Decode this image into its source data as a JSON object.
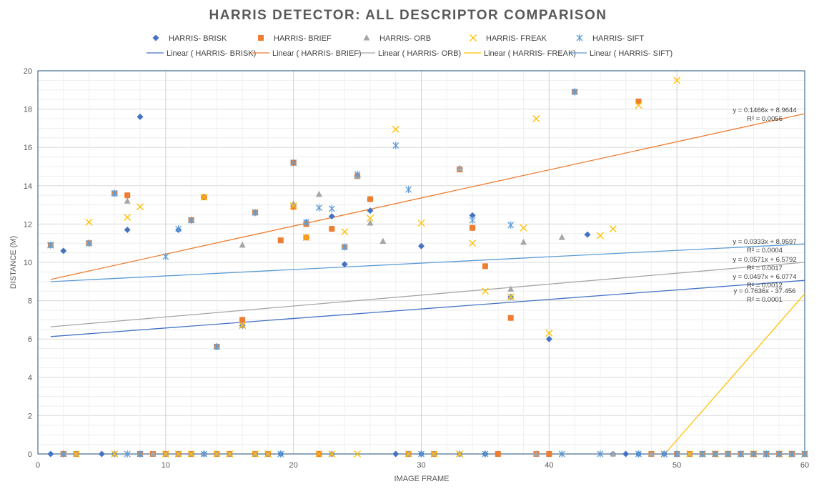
{
  "chart_data": {
    "type": "scatter",
    "title": "HARRIS DETECTOR: ALL DESCRIPTOR COMPARISON",
    "xlabel": "IMAGE FRAME",
    "ylabel": "DISTANCE (M)",
    "xlim": [
      0,
      60
    ],
    "ylim": [
      0,
      20
    ],
    "x_ticks": [
      0,
      10,
      20,
      30,
      40,
      50,
      60
    ],
    "y_ticks": [
      0,
      2,
      4,
      6,
      8,
      10,
      12,
      14,
      16,
      18,
      20
    ],
    "grid": true,
    "legend_position": "top",
    "series": [
      {
        "name": "HARRIS- BRISK",
        "marker": "diamond",
        "color": "#4472C4",
        "points": [
          [
            1,
            0
          ],
          [
            2,
            10.6
          ],
          [
            2,
            0
          ],
          [
            3,
            0
          ],
          [
            4,
            11
          ],
          [
            5,
            0
          ],
          [
            6,
            13.6
          ],
          [
            6,
            0
          ],
          [
            7,
            11.7
          ],
          [
            8,
            17.6
          ],
          [
            8,
            0
          ],
          [
            9,
            0
          ],
          [
            10,
            0
          ],
          [
            11,
            11.7
          ],
          [
            11,
            0
          ],
          [
            12,
            12.2
          ],
          [
            12,
            0
          ],
          [
            13,
            13.4
          ],
          [
            13,
            0
          ],
          [
            14,
            5.6
          ],
          [
            14,
            0
          ],
          [
            15,
            0
          ],
          [
            16,
            6.7
          ],
          [
            17,
            12.6
          ],
          [
            17,
            0
          ],
          [
            18,
            0
          ],
          [
            19,
            0
          ],
          [
            20,
            15.2
          ],
          [
            21,
            12.1
          ],
          [
            21,
            11.3
          ],
          [
            22,
            0
          ],
          [
            23,
            12.4
          ],
          [
            23,
            0
          ],
          [
            24,
            10.8
          ],
          [
            24,
            9.9
          ],
          [
            25,
            14.5
          ],
          [
            26,
            12.7
          ],
          [
            26,
            13.3
          ],
          [
            28,
            0
          ],
          [
            29,
            0
          ],
          [
            30,
            10.85
          ],
          [
            30,
            0
          ],
          [
            31,
            0
          ],
          [
            33,
            14.9
          ],
          [
            33,
            0
          ],
          [
            34,
            12.45
          ],
          [
            34,
            11.8
          ],
          [
            35,
            0
          ],
          [
            36,
            0
          ],
          [
            37,
            8.2
          ],
          [
            39,
            0
          ],
          [
            40,
            6.0
          ],
          [
            42,
            18.9
          ],
          [
            43,
            11.45
          ],
          [
            45,
            0
          ],
          [
            46,
            0
          ],
          [
            47,
            0
          ],
          [
            48,
            0
          ],
          [
            49,
            0
          ],
          [
            50,
            0
          ],
          [
            51,
            0
          ],
          [
            52,
            0
          ],
          [
            53,
            0
          ],
          [
            54,
            0
          ],
          [
            55,
            0
          ],
          [
            56,
            0
          ],
          [
            57,
            0
          ],
          [
            58,
            0
          ],
          [
            59,
            0
          ],
          [
            60,
            0
          ]
        ],
        "trendline": {
          "name": "Linear ( HARRIS- BRISK)",
          "slope": 0.0497,
          "intercept": 6.0774,
          "x_range": [
            1,
            60
          ],
          "equation": "y = 0.0497x + 6.0774",
          "r2": "R² = 0.0012"
        }
      },
      {
        "name": "HARRIS- BRIEF",
        "marker": "square",
        "color": "#ED7D31",
        "points": [
          [
            1,
            10.9
          ],
          [
            2,
            0
          ],
          [
            3,
            0
          ],
          [
            4,
            11
          ],
          [
            6,
            13.6
          ],
          [
            7,
            13.5
          ],
          [
            8,
            0
          ],
          [
            9,
            0
          ],
          [
            10,
            0
          ],
          [
            11,
            0
          ],
          [
            12,
            12.2
          ],
          [
            12,
            0
          ],
          [
            13,
            13.4
          ],
          [
            14,
            5.6
          ],
          [
            14,
            0
          ],
          [
            15,
            0
          ],
          [
            16,
            7.0
          ],
          [
            17,
            12.6
          ],
          [
            17,
            0
          ],
          [
            18,
            0
          ],
          [
            19,
            11.15
          ],
          [
            20,
            12.9
          ],
          [
            20,
            15.2
          ],
          [
            21,
            12.0
          ],
          [
            21,
            11.3
          ],
          [
            22,
            0
          ],
          [
            23,
            11.75
          ],
          [
            24,
            10.8
          ],
          [
            25,
            14.5
          ],
          [
            26,
            13.3
          ],
          [
            29,
            0
          ],
          [
            31,
            0
          ],
          [
            33,
            14.85
          ],
          [
            34,
            11.8
          ],
          [
            35,
            9.8
          ],
          [
            36,
            0
          ],
          [
            37,
            7.1
          ],
          [
            39,
            0
          ],
          [
            40,
            0
          ],
          [
            42,
            18.9
          ],
          [
            47,
            18.4
          ],
          [
            48,
            0
          ],
          [
            50,
            0
          ],
          [
            51,
            0
          ],
          [
            52,
            0
          ],
          [
            53,
            0
          ],
          [
            54,
            0
          ],
          [
            55,
            0
          ],
          [
            56,
            0
          ],
          [
            57,
            0
          ],
          [
            58,
            0
          ],
          [
            59,
            0
          ],
          [
            60,
            0
          ]
        ],
        "trendline": {
          "name": "Linear ( HARRIS- BRIEF)",
          "slope": 0.1466,
          "intercept": 8.9644,
          "x_range": [
            1,
            60
          ],
          "equation": "y = 0.1466x + 8.9644",
          "r2": "R² = 0.0056"
        }
      },
      {
        "name": "HARRIS- ORB",
        "marker": "triangle",
        "color": "#A5A5A5",
        "points": [
          [
            1,
            10.9
          ],
          [
            2,
            0
          ],
          [
            3,
            0
          ],
          [
            4,
            11
          ],
          [
            6,
            0
          ],
          [
            6,
            13.6
          ],
          [
            7,
            13.2
          ],
          [
            8,
            0
          ],
          [
            9,
            0
          ],
          [
            10,
            0
          ],
          [
            11,
            0
          ],
          [
            12,
            12.2
          ],
          [
            12,
            0
          ],
          [
            13,
            0
          ],
          [
            14,
            0
          ],
          [
            14,
            5.6
          ],
          [
            15,
            0
          ],
          [
            16,
            10.9
          ],
          [
            16,
            6.7
          ],
          [
            17,
            0
          ],
          [
            17,
            12.6
          ],
          [
            18,
            0
          ],
          [
            20,
            13.05
          ],
          [
            21,
            12.1
          ],
          [
            22,
            13.55
          ],
          [
            23,
            0
          ],
          [
            24,
            10.8
          ],
          [
            25,
            14.5
          ],
          [
            26,
            12.05
          ],
          [
            27,
            11.1
          ],
          [
            29,
            0
          ],
          [
            31,
            0
          ],
          [
            33,
            0
          ],
          [
            33,
            14.9
          ],
          [
            37,
            8.6
          ],
          [
            37,
            8.2
          ],
          [
            38,
            11.05
          ],
          [
            39,
            0
          ],
          [
            41,
            11.3
          ],
          [
            42,
            18.9
          ],
          [
            45,
            0
          ],
          [
            48,
            0
          ],
          [
            50,
            0
          ],
          [
            51,
            0
          ],
          [
            52,
            0
          ],
          [
            53,
            0
          ],
          [
            54,
            0
          ],
          [
            55,
            0
          ],
          [
            56,
            0
          ],
          [
            57,
            0
          ],
          [
            58,
            0
          ],
          [
            59,
            0
          ],
          [
            60,
            0
          ]
        ],
        "trendline": {
          "name": "Linear ( HARRIS- ORB)",
          "slope": 0.0571,
          "intercept": 6.5792,
          "x_range": [
            1,
            60
          ],
          "equation": "y = 0.0571x + 6.5792",
          "r2": "R² = 0.0017"
        }
      },
      {
        "name": "HARRIS- FREAK",
        "marker": "x",
        "color": "#FFC000",
        "points": [
          [
            1,
            10.9
          ],
          [
            3,
            0
          ],
          [
            4,
            12.1
          ],
          [
            6,
            0
          ],
          [
            7,
            12.35
          ],
          [
            8,
            12.9
          ],
          [
            10,
            0
          ],
          [
            11,
            0
          ],
          [
            12,
            0
          ],
          [
            13,
            13.4
          ],
          [
            14,
            0
          ],
          [
            15,
            0
          ],
          [
            16,
            6.7
          ],
          [
            17,
            0
          ],
          [
            18,
            0
          ],
          [
            20,
            12.95
          ],
          [
            21,
            11.3
          ],
          [
            22,
            0
          ],
          [
            23,
            0
          ],
          [
            24,
            11.6
          ],
          [
            25,
            0
          ],
          [
            26,
            12.3
          ],
          [
            28,
            16.95
          ],
          [
            29,
            0
          ],
          [
            30,
            12.05
          ],
          [
            31,
            0
          ],
          [
            33,
            0
          ],
          [
            34,
            11.0
          ],
          [
            35,
            8.5
          ],
          [
            37,
            8.2
          ],
          [
            38,
            11.8
          ],
          [
            39,
            17.5
          ],
          [
            40,
            6.3
          ],
          [
            44,
            11.4
          ],
          [
            45,
            11.75
          ],
          [
            47,
            18.2
          ],
          [
            49,
            0
          ],
          [
            50,
            19.5
          ],
          [
            51,
            0
          ],
          [
            52,
            0
          ],
          [
            53,
            0
          ],
          [
            54,
            0
          ],
          [
            55,
            0
          ],
          [
            56,
            0
          ],
          [
            57,
            0
          ],
          [
            58,
            0
          ],
          [
            59,
            0
          ],
          [
            60,
            0
          ]
        ],
        "trendline": {
          "name": "Linear ( HARRIS- FREAK)",
          "slope": 0.7636,
          "intercept": -37.456,
          "x_range": [
            1,
            60
          ],
          "equation": "y = 0.7636x - 37.456",
          "r2": "R² = 0.0001"
        }
      },
      {
        "name": "HARRIS- SIFT",
        "marker": "star",
        "color": "#5B9BD5",
        "points": [
          [
            1,
            10.9
          ],
          [
            2,
            0
          ],
          [
            4,
            11
          ],
          [
            6,
            13.6
          ],
          [
            7,
            0
          ],
          [
            8,
            0
          ],
          [
            10,
            10.3
          ],
          [
            11,
            11.75
          ],
          [
            12,
            12.2
          ],
          [
            13,
            0
          ],
          [
            14,
            5.6
          ],
          [
            17,
            12.6
          ],
          [
            19,
            0
          ],
          [
            20,
            15.2
          ],
          [
            21,
            12.1
          ],
          [
            22,
            12.85
          ],
          [
            23,
            12.8
          ],
          [
            24,
            10.8
          ],
          [
            25,
            14.6
          ],
          [
            28,
            16.1
          ],
          [
            29,
            13.8
          ],
          [
            30,
            0
          ],
          [
            34,
            12.2
          ],
          [
            35,
            0
          ],
          [
            37,
            11.95
          ],
          [
            41,
            0
          ],
          [
            42,
            18.9
          ],
          [
            44,
            0
          ],
          [
            47,
            0
          ],
          [
            49,
            0
          ],
          [
            50,
            0
          ],
          [
            52,
            0
          ],
          [
            53,
            0
          ],
          [
            54,
            0
          ],
          [
            55,
            0
          ],
          [
            56,
            0
          ],
          [
            57,
            0
          ],
          [
            58,
            0
          ],
          [
            59,
            0
          ],
          [
            60,
            0
          ]
        ],
        "trendline": {
          "name": "Linear ( HARRIS- SIFT)",
          "slope": 0.0333,
          "intercept": 8.9597,
          "x_range": [
            1,
            60
          ],
          "equation": "y = 0.0333x + 8.9597",
          "r2": "R² = 0.0004"
        }
      }
    ]
  }
}
